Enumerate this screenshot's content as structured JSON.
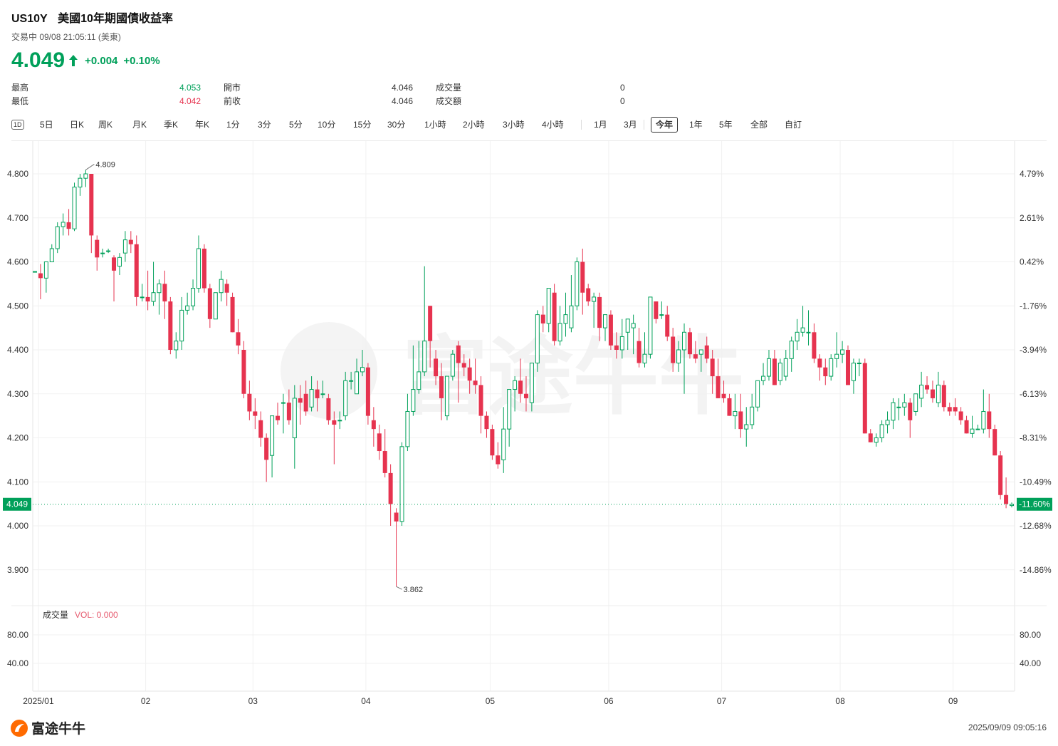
{
  "header": {
    "symbol": "US10Y",
    "name": "美國10年期國債收益率",
    "status": "交易中 09/08 21:05:11 (美東)",
    "price": "4.049",
    "change": "+0.004",
    "change_pct": "+0.10%"
  },
  "stats": {
    "high_label": "最高",
    "high_value": "4.053",
    "low_label": "最低",
    "low_value": "4.042",
    "open_label": "開市",
    "open_value": "4.046",
    "prev_label": "前收",
    "prev_value": "4.046",
    "vol_label": "成交量",
    "vol_value": "0",
    "amt_label": "成交額",
    "amt_value": "0"
  },
  "toolbar": {
    "icon": "1D",
    "items": [
      "5日",
      "日K",
      "周K",
      "月K",
      "季K",
      "年K",
      "1分",
      "3分",
      "5分",
      "10分",
      "15分",
      "30分",
      "1小時",
      "2小時",
      "3小時",
      "4小時",
      "1月",
      "3月",
      "今年",
      "1年",
      "5年",
      "全部",
      "自訂"
    ],
    "active": "今年"
  },
  "colors": {
    "up": "#00a05a",
    "down": "#e6334f",
    "grid": "#f1f1f1"
  },
  "watermark": "富途牛牛",
  "volume": {
    "label": "成交量",
    "vol_text": "VOL: 0.000",
    "ticks": [
      "80.00",
      "40.00"
    ]
  },
  "footer": {
    "logo": "富途牛牛",
    "timestamp": "2025/09/09 09:05:16"
  },
  "chart_data": {
    "type": "candlestick",
    "ylim": [
      3.82,
      4.88
    ],
    "y_ticks": [
      4.8,
      4.7,
      4.6,
      4.5,
      4.4,
      4.3,
      4.2,
      4.1,
      4.0,
      3.9
    ],
    "y_tick_labels": [
      "4.800",
      "4.700",
      "4.600",
      "4.500",
      "4.400",
      "4.300",
      "4.200",
      "4.100",
      "4.000",
      "3.900"
    ],
    "pct_tick_labels": [
      "4.79%",
      "2.61%",
      "0.42%",
      "-1.76%",
      "-3.94%",
      "-6.13%",
      "-8.31%",
      "-10.49%",
      "-12.68%",
      "-14.86%"
    ],
    "current_price_label": "4.049",
    "current_pct_label": "-11.60%",
    "max_annotation": "4.809",
    "min_annotation": "3.862",
    "x_month_labels": [
      "2025/01",
      "02",
      "03",
      "04",
      "05",
      "06",
      "07",
      "08",
      "09"
    ],
    "month_start_index": [
      1,
      20,
      39,
      59,
      81,
      102,
      122,
      143,
      163
    ],
    "ohlc": [
      [
        4.578,
        4.578,
        4.578,
        4.578
      ],
      [
        4.574,
        4.595,
        4.515,
        4.563
      ],
      [
        4.563,
        4.6,
        4.53,
        4.6
      ],
      [
        4.6,
        4.64,
        4.6,
        4.63
      ],
      [
        4.63,
        4.69,
        4.62,
        4.68
      ],
      [
        4.68,
        4.71,
        4.66,
        4.69
      ],
      [
        4.69,
        4.72,
        4.66,
        4.675
      ],
      [
        4.675,
        4.78,
        4.67,
        4.77
      ],
      [
        4.77,
        4.8,
        4.75,
        4.79
      ],
      [
        4.79,
        4.809,
        4.77,
        4.8
      ],
      [
        4.8,
        4.8,
        4.62,
        4.66
      ],
      [
        4.65,
        4.66,
        4.58,
        4.61
      ],
      [
        4.62,
        4.63,
        4.61,
        4.62
      ],
      [
        4.625,
        4.63,
        4.62,
        4.625
      ],
      [
        4.61,
        4.615,
        4.51,
        4.58
      ],
      [
        4.59,
        4.62,
        4.57,
        4.61
      ],
      [
        4.62,
        4.67,
        4.6,
        4.65
      ],
      [
        4.65,
        4.67,
        4.62,
        4.64
      ],
      [
        4.64,
        4.66,
        4.5,
        4.52
      ],
      [
        4.52,
        4.55,
        4.51,
        4.52
      ],
      [
        4.52,
        4.58,
        4.49,
        4.51
      ],
      [
        4.51,
        4.6,
        4.5,
        4.53
      ],
      [
        4.53,
        4.56,
        4.48,
        4.55
      ],
      [
        4.55,
        4.58,
        4.47,
        4.51
      ],
      [
        4.51,
        4.52,
        4.39,
        4.4
      ],
      [
        4.4,
        4.44,
        4.38,
        4.42
      ],
      [
        4.42,
        4.52,
        4.4,
        4.49
      ],
      [
        4.49,
        4.53,
        4.48,
        4.5
      ],
      [
        4.5,
        4.56,
        4.49,
        4.54
      ],
      [
        4.54,
        4.66,
        4.53,
        4.63
      ],
      [
        4.63,
        4.64,
        4.53,
        4.54
      ],
      [
        4.54,
        4.55,
        4.45,
        4.47
      ],
      [
        4.47,
        4.53,
        4.47,
        4.53
      ],
      [
        4.53,
        4.58,
        4.51,
        4.56
      ],
      [
        4.55,
        4.56,
        4.5,
        4.53
      ],
      [
        4.52,
        4.53,
        4.44,
        4.44
      ],
      [
        4.44,
        4.47,
        4.39,
        4.41
      ],
      [
        4.4,
        4.42,
        4.29,
        4.3
      ],
      [
        4.3,
        4.33,
        4.24,
        4.26
      ],
      [
        4.26,
        4.29,
        4.22,
        4.25
      ],
      [
        4.24,
        4.26,
        4.18,
        4.2
      ],
      [
        4.2,
        4.21,
        4.1,
        4.15
      ],
      [
        4.16,
        4.25,
        4.11,
        4.25
      ],
      [
        4.25,
        4.28,
        4.23,
        4.24
      ],
      [
        4.28,
        4.3,
        4.21,
        4.28
      ],
      [
        4.28,
        4.31,
        4.23,
        4.24
      ],
      [
        4.2,
        4.32,
        4.13,
        4.29
      ],
      [
        4.29,
        4.32,
        4.23,
        4.28
      ],
      [
        4.3,
        4.33,
        4.25,
        4.26
      ],
      [
        4.27,
        4.34,
        4.26,
        4.31
      ],
      [
        4.31,
        4.33,
        4.26,
        4.29
      ],
      [
        4.3,
        4.33,
        4.29,
        4.3
      ],
      [
        4.29,
        4.3,
        4.23,
        4.24
      ],
      [
        4.24,
        4.26,
        4.14,
        4.23
      ],
      [
        4.24,
        4.26,
        4.22,
        4.24
      ],
      [
        4.25,
        4.35,
        4.24,
        4.33
      ],
      [
        4.33,
        4.35,
        4.31,
        4.33
      ],
      [
        4.3,
        4.38,
        4.3,
        4.35
      ],
      [
        4.35,
        4.4,
        4.34,
        4.36
      ],
      [
        4.36,
        4.37,
        4.23,
        4.25
      ],
      [
        4.24,
        4.27,
        4.18,
        4.22
      ],
      [
        4.21,
        4.23,
        4.15,
        4.17
      ],
      [
        4.17,
        4.22,
        4.11,
        4.12
      ],
      [
        4.12,
        4.14,
        4.0,
        4.05
      ],
      [
        4.03,
        4.04,
        3.862,
        4.01
      ],
      [
        4.01,
        4.19,
        4.0,
        4.18
      ],
      [
        4.18,
        4.3,
        4.17,
        4.26
      ],
      [
        4.26,
        4.41,
        4.25,
        4.31
      ],
      [
        4.31,
        4.42,
        4.3,
        4.35
      ],
      [
        4.35,
        4.59,
        4.34,
        4.42
      ],
      [
        4.5,
        4.5,
        4.36,
        4.42
      ],
      [
        4.38,
        4.4,
        4.32,
        4.34
      ],
      [
        4.34,
        4.37,
        4.24,
        4.29
      ],
      [
        4.25,
        4.34,
        4.24,
        4.34
      ],
      [
        4.34,
        4.4,
        4.33,
        4.39
      ],
      [
        4.41,
        4.42,
        4.28,
        4.37
      ],
      [
        4.37,
        4.39,
        4.34,
        4.36
      ],
      [
        4.36,
        4.38,
        4.3,
        4.33
      ],
      [
        4.33,
        4.38,
        4.3,
        4.32
      ],
      [
        4.32,
        4.34,
        4.21,
        4.25
      ],
      [
        4.25,
        4.26,
        4.2,
        4.22
      ],
      [
        4.22,
        4.23,
        4.15,
        4.16
      ],
      [
        4.16,
        4.19,
        4.13,
        4.14
      ],
      [
        4.15,
        4.27,
        4.12,
        4.22
      ],
      [
        4.22,
        4.3,
        4.18,
        4.31
      ],
      [
        4.31,
        4.34,
        4.26,
        4.33
      ],
      [
        4.33,
        4.38,
        4.28,
        4.3
      ],
      [
        4.3,
        4.34,
        4.26,
        4.29
      ],
      [
        4.28,
        4.37,
        4.26,
        4.37
      ],
      [
        4.37,
        4.49,
        4.35,
        4.48
      ],
      [
        4.48,
        4.5,
        4.44,
        4.46
      ],
      [
        4.46,
        4.54,
        4.44,
        4.54
      ],
      [
        4.53,
        4.55,
        4.41,
        4.42
      ],
      [
        4.42,
        4.5,
        4.41,
        4.46
      ],
      [
        4.46,
        4.53,
        4.43,
        4.48
      ],
      [
        4.45,
        4.57,
        4.44,
        4.5
      ],
      [
        4.5,
        4.61,
        4.49,
        4.6
      ],
      [
        4.6,
        4.63,
        4.48,
        4.53
      ],
      [
        4.54,
        4.55,
        4.5,
        4.51
      ],
      [
        4.51,
        4.53,
        4.45,
        4.52
      ],
      [
        4.52,
        4.53,
        4.42,
        4.45
      ],
      [
        4.45,
        4.48,
        4.42,
        4.48
      ],
      [
        4.48,
        4.49,
        4.4,
        4.41
      ],
      [
        4.41,
        4.44,
        4.38,
        4.4
      ],
      [
        4.4,
        4.47,
        4.38,
        4.43
      ],
      [
        4.44,
        4.47,
        4.4,
        4.47
      ],
      [
        4.45,
        4.48,
        4.39,
        4.46
      ],
      [
        4.42,
        4.45,
        4.36,
        4.37
      ],
      [
        4.37,
        4.44,
        4.36,
        4.39
      ],
      [
        4.39,
        4.52,
        4.38,
        4.52
      ],
      [
        4.51,
        4.51,
        4.46,
        4.47
      ],
      [
        4.48,
        4.51,
        4.47,
        4.48
      ],
      [
        4.48,
        4.5,
        4.42,
        4.43
      ],
      [
        4.43,
        4.45,
        4.35,
        4.37
      ],
      [
        4.37,
        4.42,
        4.35,
        4.4
      ],
      [
        4.4,
        4.46,
        4.3,
        4.44
      ],
      [
        4.44,
        4.45,
        4.38,
        4.39
      ],
      [
        4.39,
        4.42,
        4.37,
        4.38
      ],
      [
        4.39,
        4.4,
        4.35,
        4.4
      ],
      [
        4.41,
        4.43,
        4.37,
        4.38
      ],
      [
        4.38,
        4.4,
        4.3,
        4.34
      ],
      [
        4.34,
        4.38,
        4.29,
        4.29
      ],
      [
        4.3,
        4.33,
        4.28,
        4.29
      ],
      [
        4.29,
        4.3,
        4.25,
        4.25
      ],
      [
        4.25,
        4.3,
        4.22,
        4.26
      ],
      [
        4.26,
        4.3,
        4.2,
        4.22
      ],
      [
        4.22,
        4.27,
        4.18,
        4.23
      ],
      [
        4.23,
        4.3,
        4.22,
        4.27
      ],
      [
        4.27,
        4.33,
        4.26,
        4.33
      ],
      [
        4.33,
        4.37,
        4.32,
        4.34
      ],
      [
        4.34,
        4.4,
        4.33,
        4.38
      ],
      [
        4.38,
        4.4,
        4.32,
        4.32
      ],
      [
        4.33,
        4.38,
        4.32,
        4.37
      ],
      [
        4.34,
        4.4,
        4.33,
        4.38
      ],
      [
        4.38,
        4.43,
        4.35,
        4.42
      ],
      [
        4.42,
        4.47,
        4.4,
        4.44
      ],
      [
        4.44,
        4.5,
        4.43,
        4.45
      ],
      [
        4.44,
        4.49,
        4.41,
        4.44
      ],
      [
        4.44,
        4.46,
        4.37,
        4.38
      ],
      [
        4.38,
        4.39,
        4.33,
        4.36
      ],
      [
        4.36,
        4.38,
        4.32,
        4.34
      ],
      [
        4.34,
        4.39,
        4.33,
        4.38
      ],
      [
        4.38,
        4.44,
        4.36,
        4.39
      ],
      [
        4.39,
        4.42,
        4.37,
        4.4
      ],
      [
        4.4,
        4.41,
        4.32,
        4.32
      ],
      [
        4.33,
        4.38,
        4.3,
        4.37
      ],
      [
        4.37,
        4.38,
        4.34,
        4.37
      ],
      [
        4.37,
        4.38,
        4.21,
        4.21
      ],
      [
        4.21,
        4.22,
        4.19,
        4.19
      ],
      [
        4.19,
        4.21,
        4.18,
        4.2
      ],
      [
        4.2,
        4.24,
        4.19,
        4.23
      ],
      [
        4.23,
        4.26,
        4.21,
        4.24
      ],
      [
        4.24,
        4.29,
        4.22,
        4.28
      ],
      [
        4.27,
        4.29,
        4.24,
        4.27
      ],
      [
        4.27,
        4.3,
        4.25,
        4.28
      ],
      [
        4.28,
        4.29,
        4.2,
        4.24
      ],
      [
        4.26,
        4.3,
        4.25,
        4.3
      ],
      [
        4.29,
        4.35,
        4.27,
        4.32
      ],
      [
        4.32,
        4.34,
        4.3,
        4.31
      ],
      [
        4.31,
        4.33,
        4.28,
        4.29
      ],
      [
        4.28,
        4.35,
        4.27,
        4.32
      ],
      [
        4.32,
        4.33,
        4.26,
        4.27
      ],
      [
        4.27,
        4.28,
        4.25,
        4.26
      ],
      [
        4.27,
        4.29,
        4.25,
        4.26
      ],
      [
        4.26,
        4.27,
        4.23,
        4.24
      ],
      [
        4.24,
        4.25,
        4.21,
        4.21
      ],
      [
        4.21,
        4.25,
        4.2,
        4.22
      ],
      [
        4.22,
        4.23,
        4.22,
        4.22
      ],
      [
        4.22,
        4.31,
        4.21,
        4.26
      ],
      [
        4.26,
        4.3,
        4.2,
        4.22
      ],
      [
        4.22,
        4.23,
        4.16,
        4.16
      ],
      [
        4.16,
        4.17,
        4.06,
        4.07
      ],
      [
        4.07,
        4.11,
        4.04,
        4.05
      ],
      [
        4.046,
        4.053,
        4.042,
        4.049
      ]
    ]
  }
}
